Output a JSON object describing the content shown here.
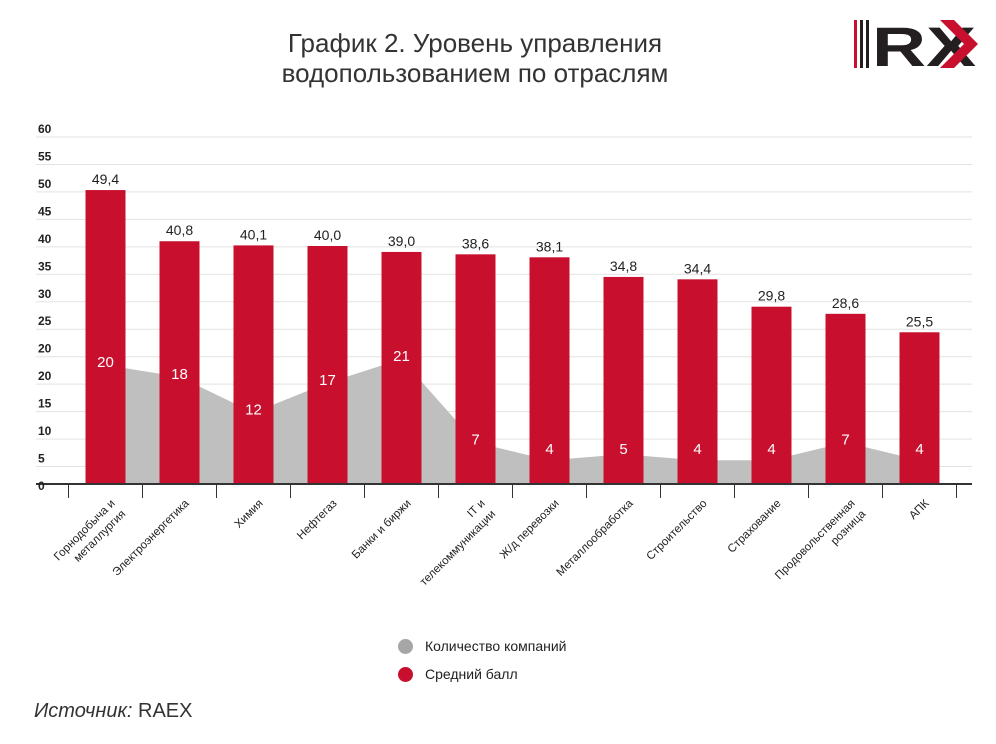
{
  "title": {
    "line1": "График 2. Уровень управления",
    "line2": "водопользованием по отраслям"
  },
  "logo": {
    "text": "RX",
    "colors": {
      "dark": "#231f20",
      "accent": "#c8102e"
    }
  },
  "colors": {
    "bar": "#c8102e",
    "area": "#bfbfbf",
    "grid": "#e3e3e3",
    "axis": "#333333"
  },
  "chart_data": {
    "type": "bar",
    "title": "График 2. Уровень управления водопользованием по отраслям",
    "categories": [
      "Горнодобыча и металлургия",
      "Электроэнергетика",
      "Химия",
      "Нефтегаз",
      "Банки и биржи",
      "IT и телекоммуникации",
      "Ж/д перевозки",
      "Металлообработка",
      "Строительство",
      "Страхование",
      "Продовольственная розница",
      "АПК"
    ],
    "category_lines": [
      [
        "Горнодобыча и",
        "металлургия"
      ],
      [
        "Электроэнергетика"
      ],
      [
        "Химия"
      ],
      [
        "Нефтегаз"
      ],
      [
        "Банки и биржи"
      ],
      [
        "IT и",
        "телекоммуникации"
      ],
      [
        "Ж/д перевозки"
      ],
      [
        "Металлообработка"
      ],
      [
        "Строительство"
      ],
      [
        "Страхование"
      ],
      [
        "Продовольственная",
        "розница"
      ],
      [
        "АПК"
      ]
    ],
    "series": [
      {
        "name": "Средний балл",
        "type": "bar",
        "values": [
          49.4,
          40.8,
          40.1,
          40.0,
          39.0,
          38.6,
          38.1,
          34.8,
          34.4,
          29.8,
          28.6,
          25.5
        ],
        "labels": [
          "49,4",
          "40,8",
          "40,1",
          "40,0",
          "39,0",
          "38,6",
          "38,1",
          "34,8",
          "34,4",
          "29,8",
          "28,6",
          "25,5"
        ]
      },
      {
        "name": "Количество компаний",
        "type": "area",
        "values": [
          20,
          18,
          12,
          17,
          21,
          7,
          4,
          5,
          4,
          4,
          7,
          4
        ],
        "labels": [
          "20",
          "18",
          "12",
          "17",
          "21",
          "7",
          "4",
          "5",
          "4",
          "4",
          "7",
          "4"
        ]
      }
    ],
    "y_ticks": [
      "60",
      "55",
      "50",
      "45",
      "40",
      "35",
      "30",
      "25",
      "20",
      "20",
      "15",
      "10",
      "5",
      "0"
    ],
    "ylim": [
      0,
      60
    ],
    "grid": true,
    "legend_position": "bottom-center"
  },
  "legend": [
    {
      "label": "Количество компаний",
      "color": "#a6a6a6"
    },
    {
      "label": "Средний балл",
      "color": "#c8102e"
    }
  ],
  "source": {
    "label": "Источник:",
    "value": " RAEX"
  }
}
